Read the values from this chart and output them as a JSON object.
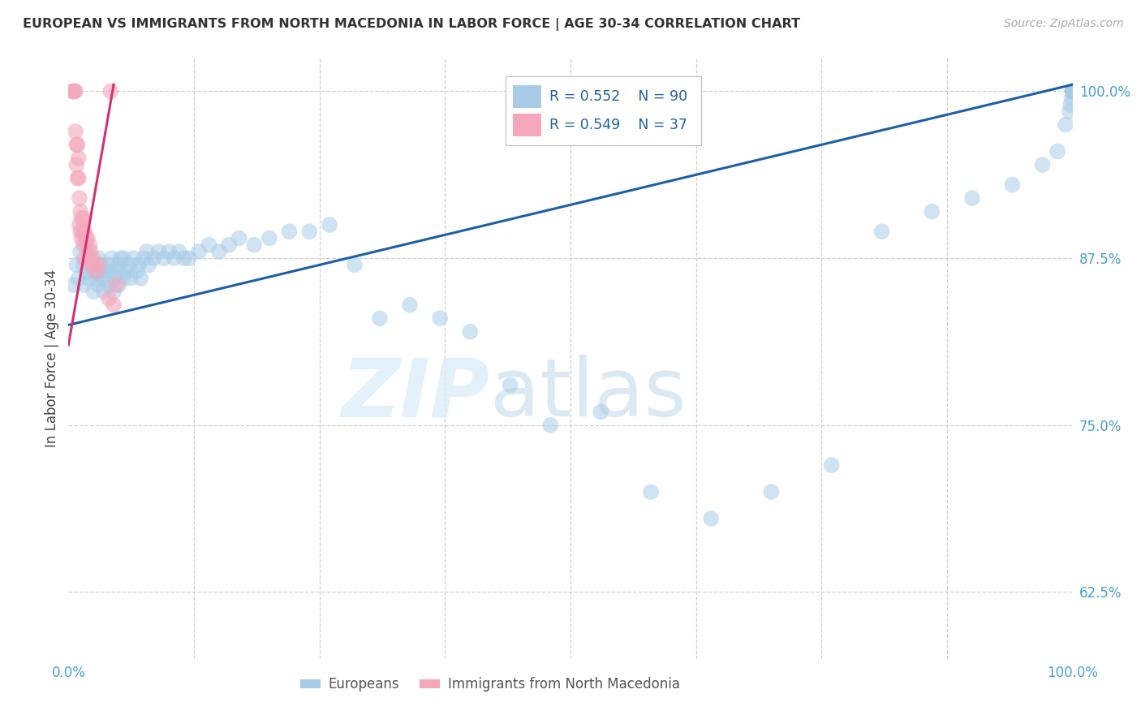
{
  "title": "EUROPEAN VS IMMIGRANTS FROM NORTH MACEDONIA IN LABOR FORCE | AGE 30-34 CORRELATION CHART",
  "source": "Source: ZipAtlas.com",
  "ylabel": "In Labor Force | Age 30-34",
  "xlim": [
    0.0,
    1.0
  ],
  "ylim": [
    0.575,
    1.025
  ],
  "yticks": [
    0.625,
    0.75,
    0.875,
    1.0
  ],
  "ytick_labels": [
    "62.5%",
    "75.0%",
    "87.5%",
    "100.0%"
  ],
  "xtick_positions": [
    0.0,
    0.125,
    0.25,
    0.375,
    0.5,
    0.625,
    0.75,
    0.875,
    1.0
  ],
  "background_color": "#ffffff",
  "grid_color": "#d0d0d0",
  "watermark_zip": "ZIP",
  "watermark_atlas": "atlas",
  "legend_r_blue": "R = 0.552",
  "legend_n_blue": "N = 90",
  "legend_r_pink": "R = 0.549",
  "legend_n_pink": "N = 37",
  "blue_color": "#a8cce8",
  "pink_color": "#f4a7bb",
  "blue_line_color": "#1a5fa8",
  "pink_line_color": "#d43070",
  "label_color": "#4a9fd4",
  "title_color": "#333333",
  "blue_line_x0": 0.0,
  "blue_line_y0": 0.825,
  "blue_line_x1": 1.0,
  "blue_line_y1": 1.005,
  "pink_line_x0": 0.0,
  "pink_line_y0": 0.81,
  "pink_line_x1": 0.045,
  "pink_line_y1": 1.005,
  "blue_scatter_x": [
    0.005,
    0.008,
    0.01,
    0.012,
    0.015,
    0.015,
    0.018,
    0.02,
    0.02,
    0.022,
    0.025,
    0.025,
    0.028,
    0.03,
    0.03,
    0.032,
    0.033,
    0.035,
    0.035,
    0.038,
    0.04,
    0.04,
    0.042,
    0.043,
    0.045,
    0.045,
    0.048,
    0.05,
    0.05,
    0.052,
    0.055,
    0.055,
    0.058,
    0.06,
    0.062,
    0.065,
    0.068,
    0.07,
    0.072,
    0.075,
    0.078,
    0.08,
    0.085,
    0.09,
    0.095,
    0.1,
    0.105,
    0.11,
    0.115,
    0.12,
    0.13,
    0.14,
    0.15,
    0.16,
    0.17,
    0.185,
    0.2,
    0.22,
    0.24,
    0.26,
    0.285,
    0.31,
    0.34,
    0.37,
    0.4,
    0.44,
    0.48,
    0.53,
    0.58,
    0.64,
    0.7,
    0.76,
    0.81,
    0.86,
    0.9,
    0.94,
    0.97,
    0.985,
    0.993,
    0.997,
    0.998,
    0.999,
    1.0,
    1.0,
    1.0,
    1.0,
    1.0,
    1.0,
    1.0,
    1.0
  ],
  "blue_scatter_y": [
    0.855,
    0.87,
    0.86,
    0.88,
    0.87,
    0.855,
    0.865,
    0.875,
    0.86,
    0.87,
    0.865,
    0.85,
    0.86,
    0.875,
    0.855,
    0.865,
    0.87,
    0.86,
    0.85,
    0.865,
    0.87,
    0.855,
    0.865,
    0.875,
    0.86,
    0.85,
    0.865,
    0.87,
    0.855,
    0.875,
    0.86,
    0.875,
    0.865,
    0.87,
    0.86,
    0.875,
    0.865,
    0.87,
    0.86,
    0.875,
    0.88,
    0.87,
    0.875,
    0.88,
    0.875,
    0.88,
    0.875,
    0.88,
    0.875,
    0.875,
    0.88,
    0.885,
    0.88,
    0.885,
    0.89,
    0.885,
    0.89,
    0.895,
    0.895,
    0.9,
    0.87,
    0.83,
    0.84,
    0.83,
    0.82,
    0.78,
    0.75,
    0.76,
    0.7,
    0.68,
    0.7,
    0.72,
    0.895,
    0.91,
    0.92,
    0.93,
    0.945,
    0.955,
    0.975,
    0.985,
    0.99,
    0.995,
    1.0,
    1.0,
    1.0,
    1.0,
    1.0,
    1.0,
    1.0,
    1.0
  ],
  "pink_scatter_x": [
    0.004,
    0.005,
    0.006,
    0.007,
    0.007,
    0.008,
    0.008,
    0.009,
    0.009,
    0.01,
    0.01,
    0.011,
    0.011,
    0.012,
    0.012,
    0.013,
    0.013,
    0.014,
    0.015,
    0.015,
    0.016,
    0.016,
    0.017,
    0.018,
    0.019,
    0.02,
    0.021,
    0.022,
    0.023,
    0.024,
    0.025,
    0.028,
    0.03,
    0.04,
    0.045,
    0.048,
    0.042
  ],
  "pink_scatter_y": [
    1.0,
    1.0,
    1.0,
    1.0,
    0.97,
    0.96,
    0.945,
    0.935,
    0.96,
    0.95,
    0.935,
    0.92,
    0.9,
    0.91,
    0.895,
    0.905,
    0.89,
    0.895,
    0.905,
    0.885,
    0.895,
    0.875,
    0.89,
    0.885,
    0.89,
    0.875,
    0.885,
    0.88,
    0.87,
    0.875,
    0.87,
    0.865,
    0.87,
    0.845,
    0.84,
    0.855,
    1.0
  ]
}
